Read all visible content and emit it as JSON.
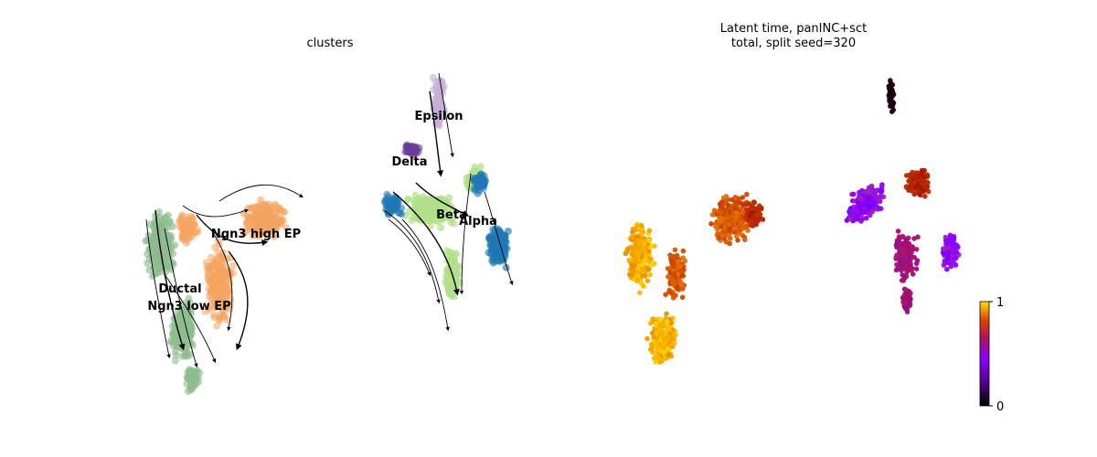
{
  "chart_data": [
    {
      "type": "scatter",
      "title": "clusters",
      "xlabel": "",
      "ylabel": "",
      "grid": false,
      "legend": "on data",
      "streamlines": true,
      "clusters": [
        {
          "name": "Ductal",
          "color": "#8fbc8f"
        },
        {
          "name": "Ngn3 low EP",
          "color": "#8fbc8f"
        },
        {
          "name": "Ngn3 high EP",
          "color": "#f4a460"
        },
        {
          "name": "Epsilon",
          "color": "#c5b0d5"
        },
        {
          "name": "Delta",
          "color": "#6a3d9a"
        },
        {
          "name": "Beta",
          "color": "#b2df8a"
        },
        {
          "name": "Alpha",
          "color": "#1f78b4"
        }
      ]
    },
    {
      "type": "scatter",
      "title": "Latent time, panINC+sct",
      "subtitle": "total, split seed=320",
      "xlabel": "",
      "ylabel": "",
      "grid": false,
      "colorbar": {
        "min": 0,
        "max": 1,
        "ticks": [
          "0",
          "1"
        ],
        "colormap": "gnuplot"
      },
      "legend": "colorbar right"
    }
  ]
}
